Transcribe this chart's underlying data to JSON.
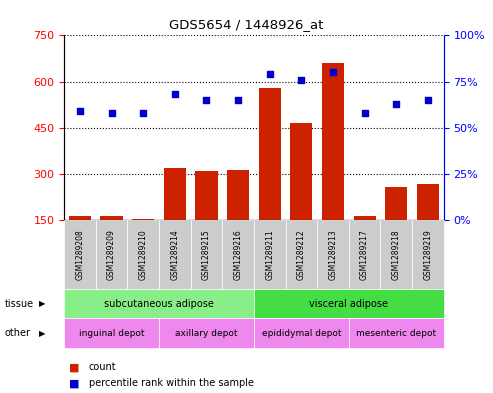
{
  "title": "GDS5654 / 1448926_at",
  "samples": [
    "GSM1289208",
    "GSM1289209",
    "GSM1289210",
    "GSM1289214",
    "GSM1289215",
    "GSM1289216",
    "GSM1289211",
    "GSM1289212",
    "GSM1289213",
    "GSM1289217",
    "GSM1289218",
    "GSM1289219"
  ],
  "counts": [
    162,
    162,
    155,
    320,
    308,
    312,
    580,
    465,
    660,
    162,
    258,
    268
  ],
  "percentiles": [
    59,
    58,
    58,
    68,
    65,
    65,
    79,
    76,
    80,
    58,
    63,
    65
  ],
  "ylim_left": [
    150,
    750
  ],
  "ylim_right": [
    0,
    100
  ],
  "yticks_left": [
    150,
    300,
    450,
    600,
    750
  ],
  "yticks_right": [
    0,
    25,
    50,
    75,
    100
  ],
  "bar_color": "#cc2200",
  "dot_color": "#0000cc",
  "tissue_groups": [
    {
      "label": "subcutaneous adipose",
      "start": 0,
      "end": 6,
      "color": "#88ee88"
    },
    {
      "label": "visceral adipose",
      "start": 6,
      "end": 12,
      "color": "#44dd44"
    }
  ],
  "other_groups": [
    {
      "label": "inguinal depot",
      "start": 0,
      "end": 3,
      "color": "#ee88ee"
    },
    {
      "label": "axillary depot",
      "start": 3,
      "end": 6,
      "color": "#ee88ee"
    },
    {
      "label": "epididymal depot",
      "start": 6,
      "end": 9,
      "color": "#ee88ee"
    },
    {
      "label": "mesenteric depot",
      "start": 9,
      "end": 12,
      "color": "#ee88ee"
    }
  ],
  "legend_count_label": "count",
  "legend_pct_label": "percentile rank within the sample",
  "tissue_label": "tissue",
  "other_label": "other",
  "col_bg_color": "#cccccc",
  "plot_bg_color": "#ffffff"
}
